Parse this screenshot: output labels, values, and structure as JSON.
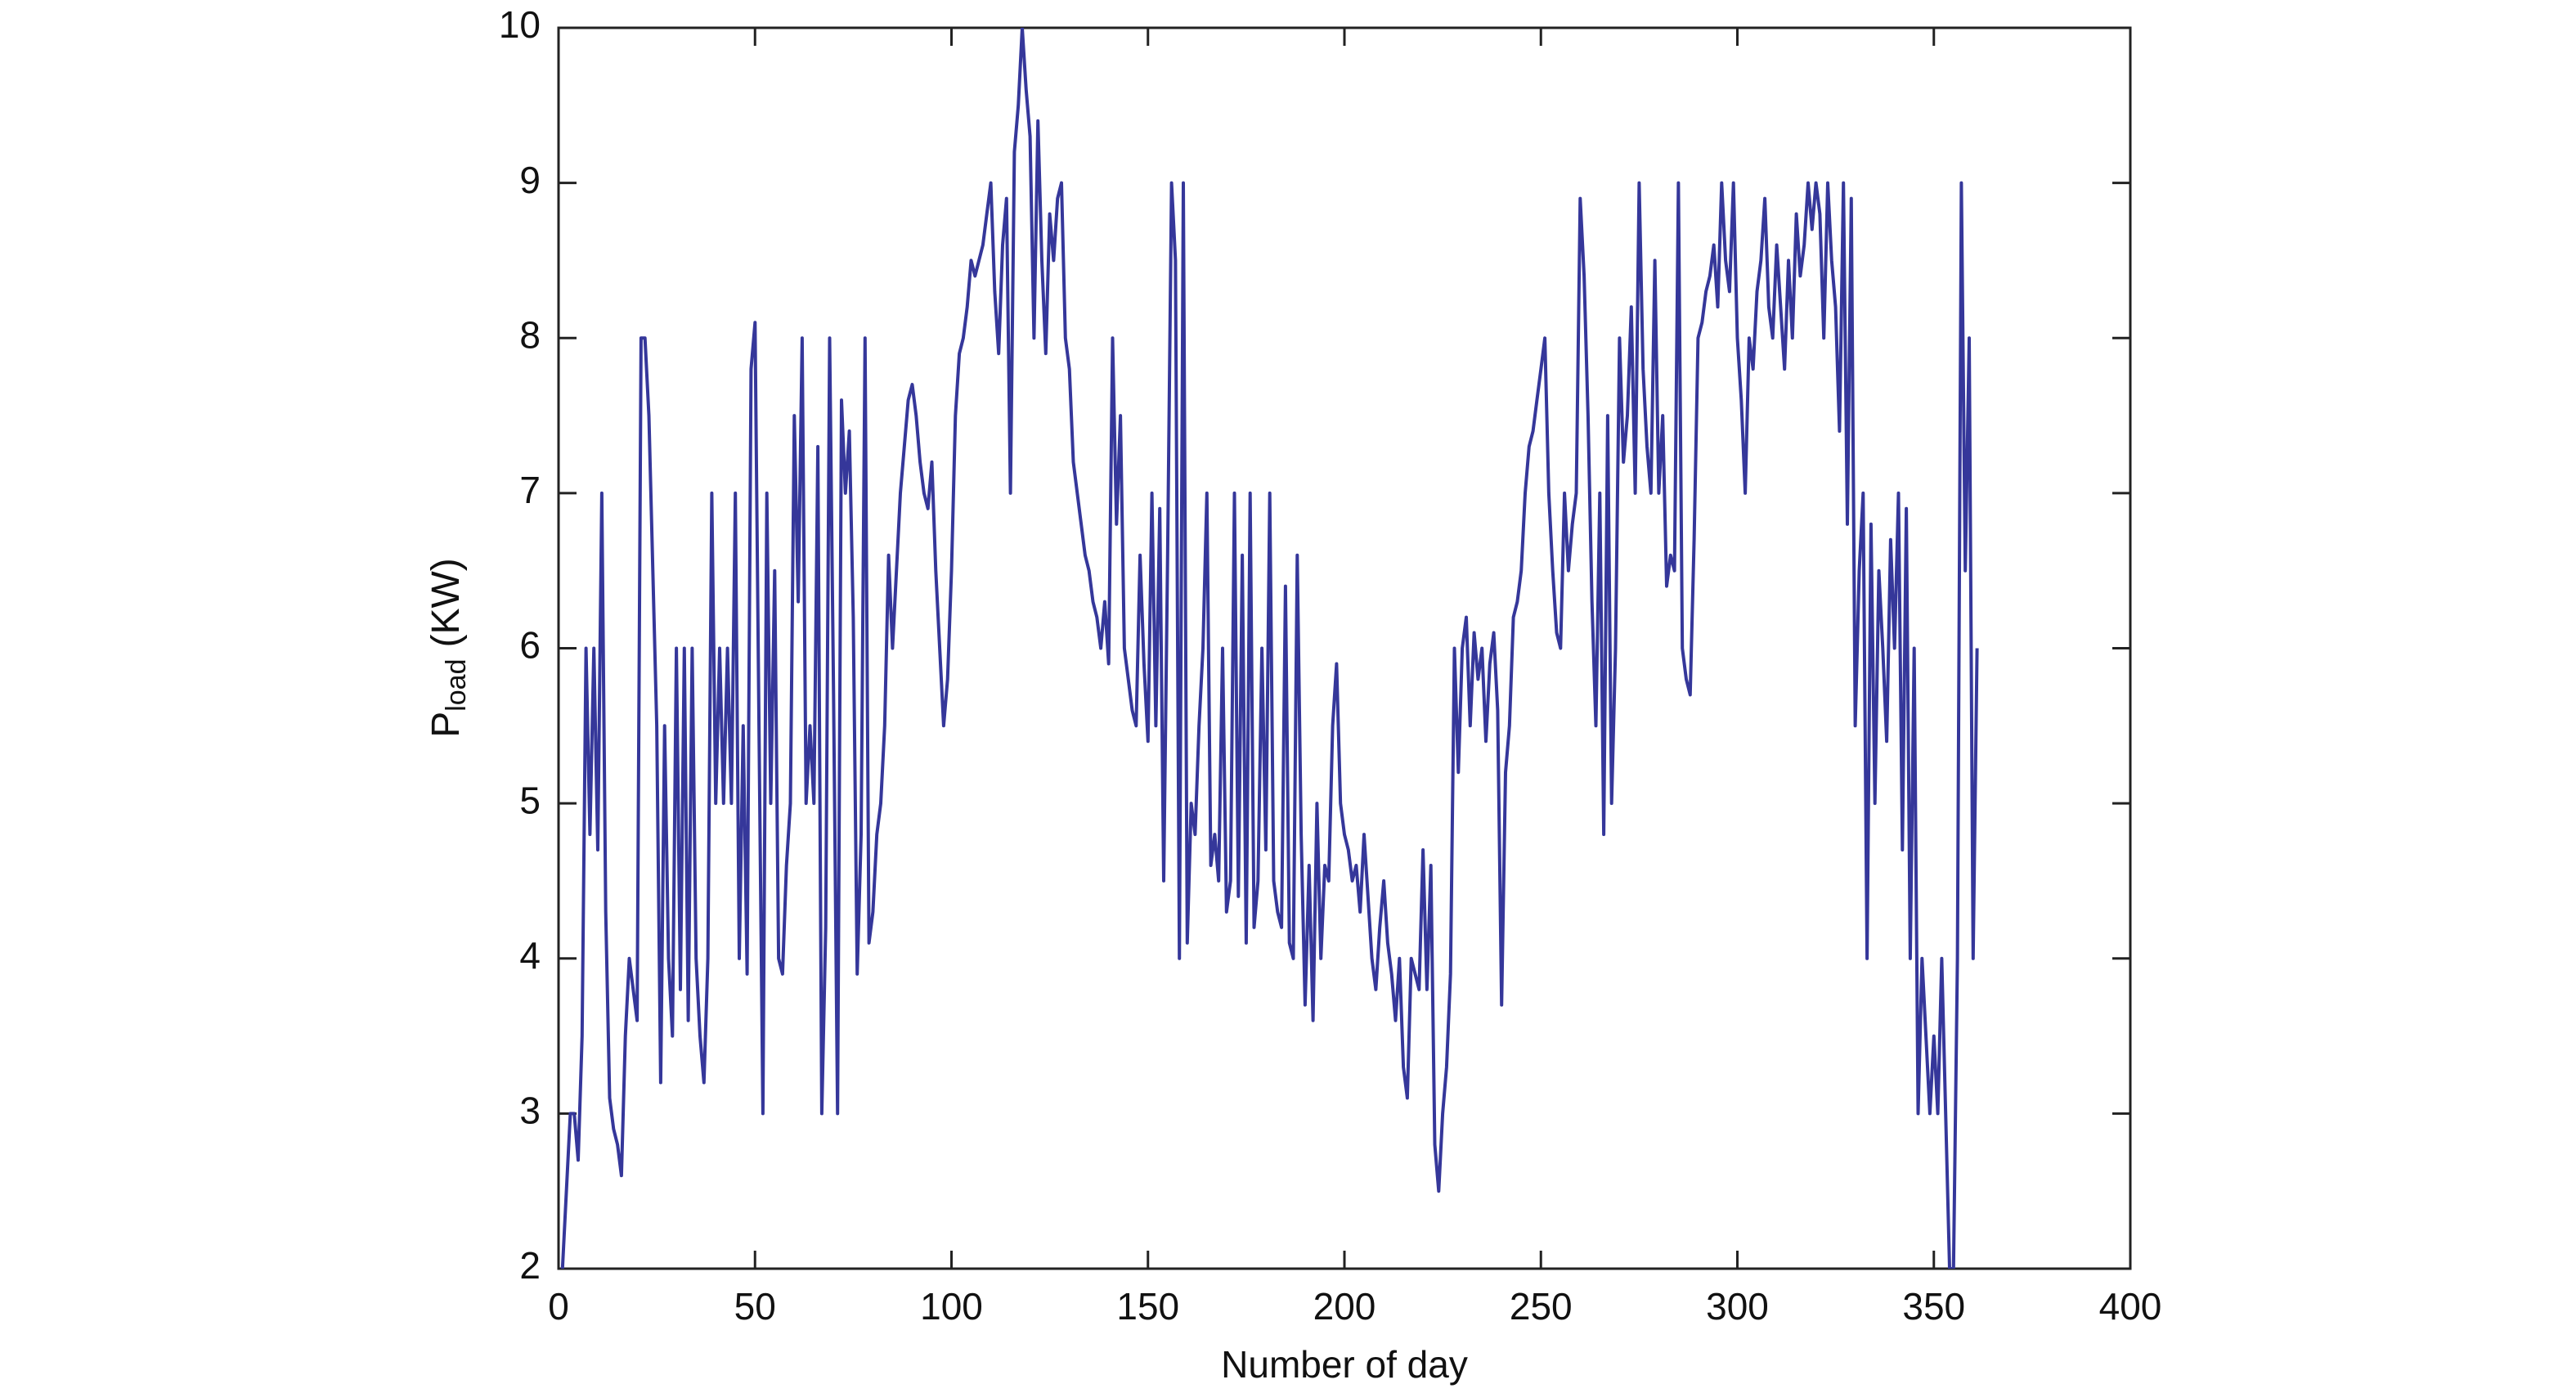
{
  "chart_data": {
    "type": "line",
    "xlabel": "Number of day",
    "ylabel": "P",
    "ylabel_subscript": "load",
    "ylabel_suffix": "(KW)",
    "color": "#35379a",
    "xlim": [
      0,
      400
    ],
    "xticks": [
      0,
      50,
      100,
      150,
      200,
      250,
      300,
      350,
      400
    ],
    "ylim": [
      2,
      10
    ],
    "yticks": [
      2,
      3,
      4,
      5,
      6,
      7,
      8,
      9,
      10
    ],
    "grid": false,
    "x": [
      1,
      2,
      3,
      4,
      5,
      6,
      7,
      8,
      9,
      10,
      11,
      12,
      13,
      14,
      15,
      16,
      17,
      18,
      19,
      20,
      21,
      22,
      23,
      24,
      25,
      26,
      27,
      28,
      29,
      30,
      31,
      32,
      33,
      34,
      35,
      36,
      37,
      38,
      39,
      40,
      41,
      42,
      43,
      44,
      45,
      46,
      47,
      48,
      49,
      50,
      51,
      52,
      53,
      54,
      55,
      56,
      57,
      58,
      59,
      60,
      61,
      62,
      63,
      64,
      65,
      66,
      67,
      68,
      69,
      70,
      71,
      72,
      73,
      74,
      75,
      76,
      77,
      78,
      79,
      80,
      81,
      82,
      83,
      84,
      85,
      86,
      87,
      88,
      89,
      90,
      91,
      92,
      93,
      94,
      95,
      96,
      97,
      98,
      99,
      100,
      101,
      102,
      103,
      104,
      105,
      106,
      107,
      108,
      109,
      110,
      111,
      112,
      113,
      114,
      115,
      116,
      117,
      118,
      119,
      120,
      121,
      122,
      123,
      124,
      125,
      126,
      127,
      128,
      129,
      130,
      131,
      132,
      133,
      134,
      135,
      136,
      137,
      138,
      139,
      140,
      141,
      142,
      143,
      144,
      145,
      146,
      147,
      148,
      149,
      150,
      151,
      152,
      153,
      154,
      155,
      156,
      157,
      158,
      159,
      160,
      161,
      162,
      163,
      164,
      165,
      166,
      167,
      168,
      169,
      170,
      171,
      172,
      173,
      174,
      175,
      176,
      177,
      178,
      179,
      180,
      181,
      182,
      183,
      184,
      185,
      186,
      187,
      188,
      189,
      190,
      191,
      192,
      193,
      194,
      195,
      196,
      197,
      198,
      199,
      200,
      201,
      202,
      203,
      204,
      205,
      206,
      207,
      208,
      209,
      210,
      211,
      212,
      213,
      214,
      215,
      216,
      217,
      218,
      219,
      220,
      221,
      222,
      223,
      224,
      225,
      226,
      227,
      228,
      229,
      230,
      231,
      232,
      233,
      234,
      235,
      236,
      237,
      238,
      239,
      240,
      241,
      242,
      243,
      244,
      245,
      246,
      247,
      248,
      249,
      250,
      251,
      252,
      253,
      254,
      255,
      256,
      257,
      258,
      259,
      260,
      261,
      262,
      263,
      264,
      265,
      266,
      267,
      268,
      269,
      270,
      271,
      272,
      273,
      274,
      275,
      276,
      277,
      278,
      279,
      280,
      281,
      282,
      283,
      284,
      285,
      286,
      287,
      288,
      289,
      290,
      291,
      292,
      293,
      294,
      295,
      296,
      297,
      298,
      299,
      300,
      301,
      302,
      303,
      304,
      305,
      306,
      307,
      308,
      309,
      310,
      311,
      312,
      313,
      314,
      315,
      316,
      317,
      318,
      319,
      320,
      321,
      322,
      323,
      324,
      325,
      326,
      327,
      328,
      329,
      330,
      331,
      332,
      333,
      334,
      335,
      336,
      337,
      338,
      339,
      340,
      341,
      342,
      343,
      344,
      345,
      346,
      347,
      348,
      349,
      350,
      351,
      352,
      353,
      354,
      355,
      356,
      357,
      358,
      359,
      360,
      361
    ],
    "values": [
      2,
      2.5,
      3,
      3,
      2.7,
      3.5,
      6,
      4.8,
      6,
      4.7,
      7,
      4.3,
      3.1,
      2.9,
      2.8,
      2.6,
      3.5,
      4,
      3.8,
      3.6,
      8,
      8,
      7.5,
      6.5,
      5.5,
      3.2,
      5.5,
      4,
      3.5,
      6,
      3.8,
      6,
      3.6,
      6,
      4,
      3.5,
      3.2,
      4,
      7,
      5,
      6,
      5,
      6,
      5,
      7,
      4,
      5.5,
      3.9,
      7.8,
      8.1,
      5.5,
      3,
      7,
      5,
      6.5,
      4,
      3.9,
      4.6,
      5,
      7.5,
      6.3,
      8,
      5,
      5.5,
      5,
      7.3,
      3,
      4.2,
      8,
      5.7,
      3,
      7.6,
      7,
      7.4,
      6.2,
      3.9,
      4.8,
      8,
      4.1,
      4.3,
      4.8,
      5,
      5.5,
      6.6,
      6,
      6.5,
      7,
      7.3,
      7.6,
      7.7,
      7.5,
      7.2,
      7,
      6.9,
      7.2,
      6.5,
      6,
      5.5,
      5.8,
      6.5,
      7.5,
      7.9,
      8,
      8.2,
      8.5,
      8.4,
      8.5,
      8.6,
      8.8,
      9,
      8.3,
      7.9,
      8.6,
      8.9,
      7,
      9.2,
      9.5,
      10,
      9.6,
      9.3,
      8,
      9.4,
      8.5,
      7.9,
      8.8,
      8.5,
      8.9,
      9,
      8,
      7.8,
      7.2,
      7,
      6.8,
      6.6,
      6.5,
      6.3,
      6.2,
      6,
      6.3,
      5.9,
      8,
      6.8,
      7.5,
      6,
      5.8,
      5.6,
      5.5,
      6.6,
      5.9,
      5.4,
      7,
      5.5,
      6.9,
      4.5,
      6.6,
      9,
      8.5,
      4,
      9,
      4.1,
      5,
      4.8,
      5.5,
      6,
      7,
      4.6,
      4.8,
      4.5,
      6,
      4.3,
      4.5,
      7,
      4.4,
      6.6,
      4.1,
      7,
      4.2,
      4.5,
      6,
      4.7,
      7,
      4.5,
      4.3,
      4.2,
      6.4,
      4.1,
      4,
      6.6,
      4.8,
      3.7,
      4.6,
      3.6,
      5,
      4,
      4.6,
      4.5,
      5.5,
      5.9,
      5,
      4.8,
      4.7,
      4.5,
      4.6,
      4.3,
      4.8,
      4.4,
      4,
      3.8,
      4.2,
      4.5,
      4.1,
      3.9,
      3.6,
      4,
      3.3,
      3.1,
      4,
      3.9,
      3.8,
      4.7,
      3.8,
      4.6,
      2.8,
      2.5,
      3,
      3.3,
      3.9,
      6,
      5.2,
      6,
      6.2,
      5.5,
      6.1,
      5.8,
      6,
      5.4,
      5.9,
      6.1,
      5.6,
      3.7,
      5.2,
      5.5,
      6.2,
      6.3,
      6.5,
      7,
      7.3,
      7.4,
      7.6,
      7.8,
      8,
      7,
      6.5,
      6.1,
      6,
      7,
      6.5,
      6.8,
      7,
      8.9,
      8.4,
      7.5,
      6.3,
      5.5,
      7,
      4.8,
      7.5,
      5,
      6,
      8,
      7.2,
      7.5,
      8.2,
      7,
      9,
      7.8,
      7.3,
      7,
      8.5,
      7,
      7.5,
      6.4,
      6.6,
      6.5,
      9,
      6,
      5.8,
      5.7,
      6.7,
      8,
      8.1,
      8.3,
      8.4,
      8.6,
      8.2,
      9,
      8.5,
      8.3,
      9,
      8,
      7.6,
      7,
      8,
      7.8,
      8.3,
      8.5,
      8.9,
      8.2,
      8,
      8.6,
      8.2,
      7.8,
      8.5,
      8,
      8.8,
      8.4,
      8.6,
      9,
      8.7,
      9,
      8.8,
      8,
      9,
      8.5,
      8.2,
      7.4,
      9,
      6.8,
      8.9,
      5.5,
      6.5,
      7,
      4,
      6.8,
      5,
      6.5,
      6,
      5.4,
      6.7,
      6,
      7,
      4.7,
      6.9,
      4,
      6,
      3,
      4,
      3.5,
      3,
      3.5,
      3,
      4,
      3,
      2,
      2,
      4,
      9,
      6.5,
      8,
      4,
      6
    ]
  }
}
